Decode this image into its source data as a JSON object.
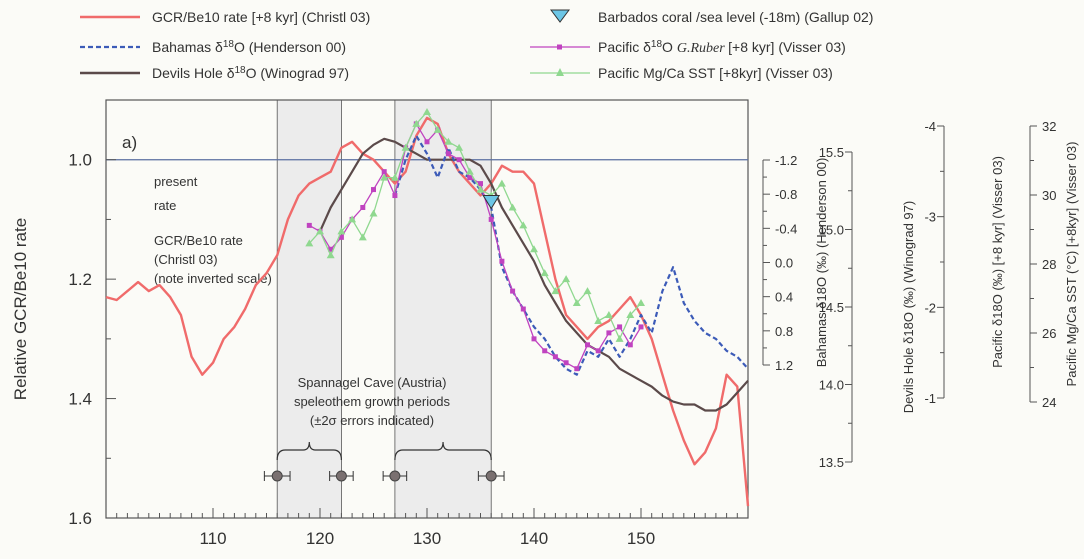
{
  "chart_data": {
    "type": "line",
    "panel_label": "a)",
    "ylabel": "Relative GCR/Be10 rate",
    "xlim": [
      100,
      160
    ],
    "ylim_inverted": [
      0.9,
      1.6
    ],
    "x_ticks": [
      110,
      120,
      130,
      140,
      150
    ],
    "y_ticks": [
      1.0,
      1.2,
      1.4,
      1.6
    ],
    "y_tick_labels": [
      "1.0",
      "1.2",
      "1.4",
      "1.6"
    ],
    "colors": {
      "gcr": "#f06b6b",
      "bahamas": "#3c5bb8",
      "devils": "#5b4a4a",
      "barbados": "#6cc6e6",
      "visser_d18o": "#c043c0",
      "mgca": "#8fd88f",
      "present": "#5a6fa0",
      "band": "#ececec",
      "axis": "#555555"
    },
    "legend": {
      "gcr": "GCR/Be10 rate [+8 kyr] (Christl 03)",
      "bahamas_a": "Bahamas δ",
      "bahamas_b": "O (Henderson 00)",
      "devils_a": "Devils Hole δ",
      "devils_b": "O (Winograd 97)",
      "barbados": "Barbados coral /sea level (-18m) (Gallup 02)",
      "visser_a": "Pacific δ",
      "visser_b": "O",
      "visser_sp": "G.Ruber",
      "visser_c": "[+8 kyr] (Visser 03)",
      "mgca": "Pacific Mg/Ca SST [+8kyr] (Visser 03)",
      "sup18": "18"
    },
    "annotations": {
      "present_1": "present",
      "present_2": "rate",
      "gcr_note_1": "GCR/Be10 rate",
      "gcr_note_2": "(Christl 03)",
      "gcr_note_3": "(note inverted scale)",
      "spannagel_1": "Spannagel Cave (Austria)",
      "spannagel_2": "speleothem growth periods",
      "spannagel_3": "(±2σ errors indicated)"
    },
    "growth_bands": [
      [
        116,
        122
      ],
      [
        127,
        136
      ]
    ],
    "growth_points": [
      {
        "x": 116,
        "err": 1.2
      },
      {
        "x": 122,
        "err": 1.1
      },
      {
        "x": 127,
        "err": 1.1
      },
      {
        "x": 136,
        "err": 1.2
      }
    ],
    "present_rate": 1.0,
    "right_axes": [
      {
        "id": "bahamas",
        "ticks": [
          "-1.2",
          "-0.8",
          "-0.4",
          "0.0",
          "0.4",
          "0.8",
          "1.2"
        ],
        "label": "Bahamas δ18O (‰) (Henderson 00)"
      },
      {
        "id": "devils",
        "ticks": [
          "15.5",
          "15.0",
          "14.5",
          "14.0",
          "13.5"
        ],
        "label": "Devils Hole δ18O (‰) (Winograd 97)"
      },
      {
        "id": "visser",
        "ticks": [
          "-4",
          "-3",
          "-2",
          "-1"
        ],
        "label": "Pacific δ18O (‰) [+8 kyr] (Visser 03)"
      },
      {
        "id": "mgca",
        "ticks": [
          "32",
          "30",
          "28",
          "26",
          "24"
        ],
        "label": "Pacific Mg/Ca SST (°C) [+8kyr] (Visser 03)"
      }
    ],
    "series": [
      {
        "name": "GCR/Be10 rate [+8 kyr] (Christl 03)",
        "key": "gcr",
        "x": [
          100,
          101,
          102,
          103,
          104,
          105,
          106,
          107,
          108,
          109,
          110,
          111,
          112,
          113,
          114,
          115,
          116,
          117,
          118,
          119,
          120,
          121,
          122,
          123,
          124,
          125,
          126,
          127,
          128,
          129,
          130,
          131,
          132,
          133,
          134,
          135,
          136,
          137,
          138,
          139,
          140,
          141,
          142,
          143,
          144,
          145,
          146,
          147,
          148,
          149,
          150,
          151,
          152,
          153,
          154,
          155,
          156,
          157,
          158,
          159,
          160
        ],
        "y": [
          1.23,
          1.235,
          1.22,
          1.205,
          1.22,
          1.21,
          1.23,
          1.26,
          1.33,
          1.36,
          1.34,
          1.3,
          1.28,
          1.25,
          1.21,
          1.19,
          1.16,
          1.1,
          1.06,
          1.04,
          1.03,
          1.02,
          0.98,
          0.97,
          0.99,
          1.0,
          1.02,
          1.04,
          1.02,
          0.96,
          0.93,
          0.94,
          0.99,
          1.02,
          1.04,
          1.06,
          1.04,
          1.01,
          1.02,
          1.02,
          1.04,
          1.12,
          1.2,
          1.26,
          1.28,
          1.3,
          1.28,
          1.27,
          1.25,
          1.23,
          1.26,
          1.3,
          1.36,
          1.42,
          1.47,
          1.51,
          1.49,
          1.45,
          1.36,
          1.38,
          1.58
        ]
      },
      {
        "name": "Devils Hole δ18O (Winograd 97)",
        "key": "devils",
        "x": [
          120,
          121,
          122,
          123,
          124,
          125,
          126,
          127,
          128,
          129,
          130,
          131,
          132,
          133,
          134,
          135,
          136,
          137,
          138,
          139,
          140,
          141,
          142,
          143,
          144,
          145,
          146,
          147,
          148,
          149,
          150,
          151,
          152,
          153,
          154,
          155,
          156,
          157,
          158,
          159,
          160
        ],
        "y": [
          1.12,
          1.08,
          1.05,
          1.02,
          0.99,
          0.975,
          0.965,
          0.97,
          0.98,
          0.99,
          1.0,
          1.0,
          1.0,
          1.0,
          1.0,
          1.01,
          1.04,
          1.08,
          1.11,
          1.14,
          1.17,
          1.21,
          1.24,
          1.27,
          1.29,
          1.31,
          1.32,
          1.33,
          1.35,
          1.36,
          1.37,
          1.38,
          1.395,
          1.405,
          1.41,
          1.41,
          1.42,
          1.42,
          1.41,
          1.39,
          1.37
        ]
      },
      {
        "name": "Bahamas δ18O (Henderson 00)",
        "key": "bahamas",
        "x": [
          127,
          128,
          129,
          130,
          131,
          132,
          133,
          134,
          135,
          136,
          137,
          138,
          139,
          140,
          141,
          142,
          143,
          144,
          145,
          146,
          147,
          148,
          149,
          150,
          151,
          152,
          153,
          154,
          155,
          156,
          157,
          158,
          159,
          160
        ],
        "y": [
          1.06,
          1.0,
          0.96,
          0.99,
          1.03,
          0.98,
          1.02,
          1.03,
          1.05,
          1.08,
          1.18,
          1.22,
          1.25,
          1.28,
          1.3,
          1.33,
          1.35,
          1.36,
          1.32,
          1.33,
          1.3,
          1.33,
          1.3,
          1.26,
          1.29,
          1.22,
          1.18,
          1.24,
          1.27,
          1.29,
          1.3,
          1.32,
          1.33,
          1.35
        ]
      },
      {
        "name": "Pacific δ18O G.Ruber [+8 kyr] (Visser 03)",
        "key": "visser_d18o",
        "x": [
          119,
          120,
          121,
          122,
          123,
          124,
          125,
          126,
          127,
          128,
          129,
          130,
          131,
          132,
          133,
          134,
          135,
          136,
          137,
          138,
          139,
          140,
          141,
          142,
          143,
          144,
          145,
          146,
          147,
          148,
          149,
          150
        ],
        "y": [
          1.11,
          1.12,
          1.15,
          1.13,
          1.1,
          1.08,
          1.05,
          1.02,
          1.06,
          0.98,
          0.94,
          0.97,
          0.95,
          0.99,
          1.0,
          1.03,
          1.04,
          1.1,
          1.17,
          1.22,
          1.25,
          1.3,
          1.32,
          1.33,
          1.34,
          1.35,
          1.31,
          1.32,
          1.29,
          1.28,
          1.31,
          1.28
        ]
      },
      {
        "name": "Pacific Mg/Ca SST [+8kyr] (Visser 03)",
        "key": "mgca",
        "x": [
          119,
          120,
          121,
          122,
          123,
          124,
          125,
          126,
          127,
          128,
          129,
          130,
          131,
          132,
          133,
          134,
          135,
          136,
          137,
          138,
          139,
          140,
          141,
          142,
          143,
          144,
          145,
          146,
          147,
          148,
          149,
          150
        ],
        "y": [
          1.14,
          1.12,
          1.16,
          1.12,
          1.1,
          1.13,
          1.09,
          1.03,
          1.03,
          0.98,
          0.94,
          0.92,
          0.95,
          0.97,
          0.98,
          1.02,
          1.05,
          1.06,
          1.04,
          1.08,
          1.11,
          1.15,
          1.19,
          1.22,
          1.2,
          1.24,
          1.22,
          1.27,
          1.26,
          1.3,
          1.26,
          1.24
        ]
      }
    ],
    "barbados_point": {
      "x": 136,
      "y": 1.07
    }
  }
}
